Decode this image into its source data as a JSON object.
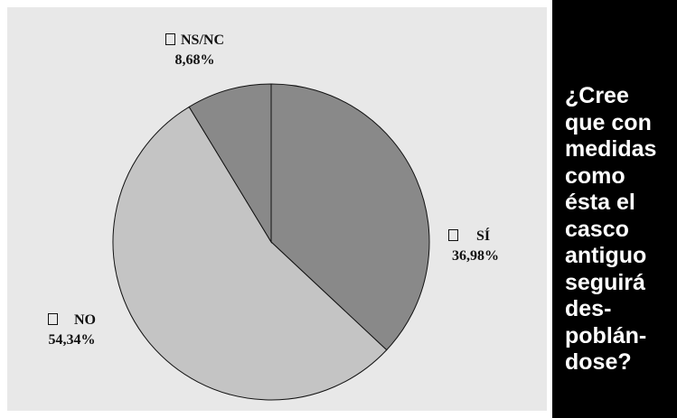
{
  "question": "¿Cree que con medidas como ésta el casco antiguo seguirá des-poblán-dose?",
  "question_lines": [
    "¿Cree",
    "que con",
    "medidas",
    "como",
    "ésta el",
    "casco",
    "antiguo",
    "seguirá",
    "des-",
    "poblán-",
    "dose?"
  ],
  "chart_data": {
    "type": "pie",
    "title": "",
    "slices": [
      {
        "label": "SÍ",
        "value": 36.98,
        "value_text": "36,98%",
        "color": "#898989"
      },
      {
        "label": "NO",
        "value": 54.34,
        "value_text": "54,34%",
        "color": "#c4c4c4"
      },
      {
        "label": "NS/NC",
        "value": 8.68,
        "value_text": "8,68%",
        "color": "#898989"
      }
    ],
    "start": "12 o'clock",
    "direction": "clockwise",
    "legend": "labels beside slices"
  },
  "colors": {
    "panel_background": "#e8e8e8",
    "question_background": "#000000",
    "question_text": "#ffffff"
  }
}
